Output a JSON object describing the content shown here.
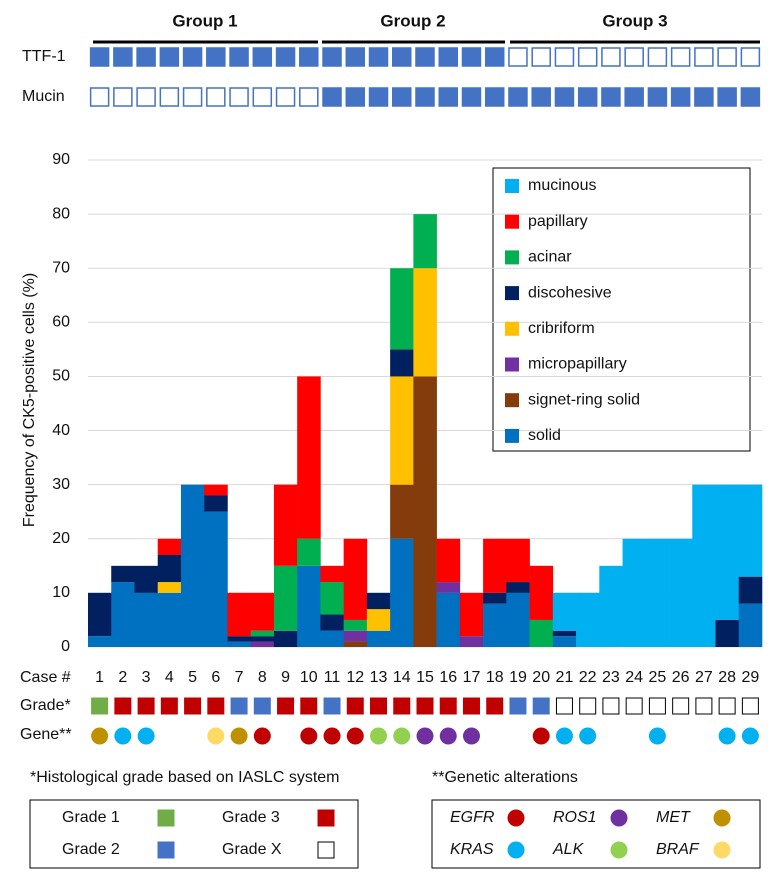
{
  "chart_data": {
    "type": "stacked_bar",
    "y_label": "Frequency of CK5-positive cells (%)",
    "x_label": "Case #",
    "categories": [
      "1",
      "2",
      "3",
      "4",
      "5",
      "6",
      "7",
      "8",
      "9",
      "10",
      "11",
      "12",
      "13",
      "14",
      "15",
      "16",
      "17",
      "18",
      "19",
      "20",
      "21",
      "22",
      "23",
      "24",
      "25",
      "26",
      "27",
      "28",
      "29"
    ],
    "series": [
      {
        "name": "solid",
        "color": "#0070c0",
        "values": [
          2,
          12,
          10,
          10,
          30,
          25,
          1,
          0,
          0,
          15,
          3,
          0,
          3,
          20,
          0,
          10,
          0,
          8,
          10,
          0,
          2,
          0,
          0,
          0,
          0,
          0,
          0,
          0,
          8
        ]
      },
      {
        "name": "signet-ring solid",
        "color": "#843c0c",
        "values": [
          0,
          0,
          0,
          0,
          0,
          0,
          0,
          0,
          0,
          0,
          0,
          1,
          0,
          10,
          50,
          0,
          0,
          0,
          0,
          0,
          0,
          0,
          0,
          0,
          0,
          0,
          0,
          0,
          0
        ]
      },
      {
        "name": "micropapillary",
        "color": "#7030a0",
        "values": [
          0,
          0,
          0,
          0,
          0,
          0,
          0,
          1,
          0,
          0,
          0,
          2,
          0,
          0,
          0,
          2,
          2,
          0,
          0,
          0,
          0,
          0,
          0,
          0,
          0,
          0,
          0,
          0,
          0
        ]
      },
      {
        "name": "cribriform",
        "color": "#ffc000",
        "values": [
          0,
          0,
          0,
          2,
          0,
          0,
          0,
          0,
          0,
          0,
          0,
          0,
          4,
          20,
          20,
          0,
          0,
          0,
          0,
          0,
          0,
          0,
          0,
          0,
          0,
          0,
          0,
          0,
          0
        ]
      },
      {
        "name": "discohesive",
        "color": "#002060",
        "values": [
          8,
          3,
          5,
          5,
          0,
          3,
          1,
          1,
          3,
          0,
          3,
          0,
          3,
          5,
          0,
          0,
          0,
          2,
          2,
          0,
          1,
          0,
          0,
          0,
          0,
          0,
          0,
          5,
          5
        ]
      },
      {
        "name": "acinar",
        "color": "#00b050",
        "values": [
          0,
          0,
          0,
          0,
          0,
          0,
          0,
          1,
          12,
          5,
          6,
          2,
          0,
          15,
          10,
          0,
          0,
          0,
          0,
          5,
          0,
          0,
          0,
          0,
          0,
          0,
          0,
          0,
          0
        ]
      },
      {
        "name": "papillary",
        "color": "#ff0000",
        "values": [
          0,
          0,
          0,
          3,
          0,
          2,
          8,
          7,
          15,
          30,
          3,
          15,
          0,
          0,
          0,
          8,
          8,
          10,
          8,
          10,
          0,
          0,
          0,
          0,
          0,
          0,
          0,
          0,
          0
        ]
      },
      {
        "name": "mucinous",
        "color": "#00b0f0",
        "values": [
          0,
          0,
          0,
          0,
          0,
          0,
          0,
          0,
          0,
          0,
          0,
          0,
          0,
          0,
          0,
          0,
          0,
          0,
          0,
          0,
          7,
          10,
          15,
          20,
          20,
          20,
          30,
          25,
          17
        ]
      }
    ],
    "ylim": [
      0,
      90
    ],
    "yticks": [
      0,
      10,
      20,
      30,
      40,
      50,
      60,
      70,
      80,
      90
    ],
    "grid": true
  },
  "groups": [
    "Group 1",
    "Group 2",
    "Group 3"
  ],
  "marker_rows": [
    {
      "label": "TTF-1",
      "color": "#4472c4",
      "values": [
        1,
        1,
        1,
        1,
        1,
        1,
        1,
        1,
        1,
        1,
        1,
        1,
        1,
        1,
        1,
        1,
        1,
        1,
        0,
        0,
        0,
        0,
        0,
        0,
        0,
        0,
        0,
        0,
        0
      ]
    },
    {
      "label": "Mucin",
      "color": "#4472c4",
      "values": [
        0,
        0,
        0,
        0,
        0,
        0,
        0,
        0,
        0,
        0,
        1,
        1,
        1,
        1,
        1,
        1,
        1,
        1,
        1,
        1,
        1,
        1,
        1,
        1,
        1,
        1,
        1,
        1,
        1
      ]
    }
  ],
  "grade_row": {
    "label": "Grade*",
    "values": [
      "1",
      "3",
      "3",
      "3",
      "3",
      "3",
      "2",
      "2",
      "3",
      "3",
      "2",
      "3",
      "3",
      "3",
      "3",
      "3",
      "3",
      "3",
      "2",
      "2",
      "X",
      "X",
      "X",
      "X",
      "X",
      "X",
      "X",
      "X",
      "X"
    ]
  },
  "gene_row": {
    "label": "Gene**",
    "values": [
      "MET",
      "KRAS",
      "KRAS",
      null,
      null,
      "BRAF",
      "MET",
      "EGFR",
      null,
      "EGFR",
      "EGFR",
      "EGFR",
      "ALK",
      "ALK",
      "ROS1",
      "ROS1",
      "ROS1",
      null,
      null,
      "EGFR",
      "KRAS",
      "KRAS",
      null,
      null,
      "KRAS",
      null,
      null,
      "KRAS",
      "KRAS"
    ]
  },
  "grade_legend": {
    "title": "*Histological grade based on IASLC system",
    "items": [
      {
        "key": "1",
        "label": "Grade 1",
        "color": "#70ad47"
      },
      {
        "key": "2",
        "label": "Grade 2",
        "color": "#4472c4"
      },
      {
        "key": "3",
        "label": "Grade 3",
        "color": "#c00000"
      },
      {
        "key": "X",
        "label": "Grade X",
        "color": "none"
      }
    ]
  },
  "gene_legend": {
    "title": "**Genetic alterations",
    "items": [
      {
        "label": "EGFR",
        "color": "#c00000"
      },
      {
        "label": "KRAS",
        "color": "#00b0f0"
      },
      {
        "label": "ROS1",
        "color": "#7030a0"
      },
      {
        "label": "ALK",
        "color": "#92d050"
      },
      {
        "label": "MET",
        "color": "#bf9000"
      },
      {
        "label": "BRAF",
        "color": "#ffd966"
      }
    ]
  }
}
